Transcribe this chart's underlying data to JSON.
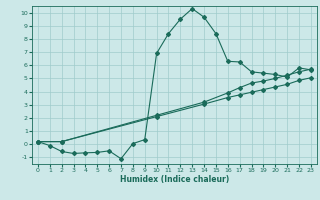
{
  "xlabel": "Humidex (Indice chaleur)",
  "bg_color": "#cce8e8",
  "grid_color": "#a0cccc",
  "line_color": "#1a6b5a",
  "xlim": [
    -0.5,
    23.5
  ],
  "ylim": [
    -1.5,
    10.5
  ],
  "xticks": [
    0,
    1,
    2,
    3,
    4,
    5,
    6,
    7,
    8,
    9,
    10,
    11,
    12,
    13,
    14,
    15,
    16,
    17,
    18,
    19,
    20,
    21,
    22,
    23
  ],
  "yticks": [
    -1,
    0,
    1,
    2,
    3,
    4,
    5,
    6,
    7,
    8,
    9,
    10
  ],
  "line1_x": [
    0,
    1,
    2,
    3,
    4,
    5,
    6,
    7,
    8,
    9,
    10,
    11,
    12,
    13,
    14,
    15,
    16,
    17,
    18,
    19,
    20,
    21,
    22,
    23
  ],
  "line1_y": [
    0.2,
    -0.1,
    -0.55,
    -0.7,
    -0.65,
    -0.62,
    -0.5,
    -1.1,
    0.05,
    0.35,
    6.9,
    8.4,
    9.5,
    10.3,
    9.65,
    8.4,
    6.3,
    6.25,
    5.5,
    5.4,
    5.3,
    5.1,
    5.8,
    5.65
  ],
  "line2_x": [
    0,
    2,
    10,
    14,
    16,
    17,
    18,
    19,
    20,
    21,
    22,
    23
  ],
  "line2_y": [
    0.2,
    0.2,
    2.1,
    3.05,
    3.55,
    3.75,
    3.95,
    4.15,
    4.35,
    4.55,
    4.85,
    5.05
  ],
  "line3_x": [
    0,
    2,
    10,
    14,
    16,
    17,
    18,
    19,
    20,
    21,
    22,
    23
  ],
  "line3_y": [
    0.2,
    0.2,
    2.2,
    3.2,
    3.9,
    4.3,
    4.65,
    4.8,
    5.0,
    5.25,
    5.5,
    5.7
  ],
  "marker": "D",
  "markersize": 2.0,
  "linewidth": 0.8
}
